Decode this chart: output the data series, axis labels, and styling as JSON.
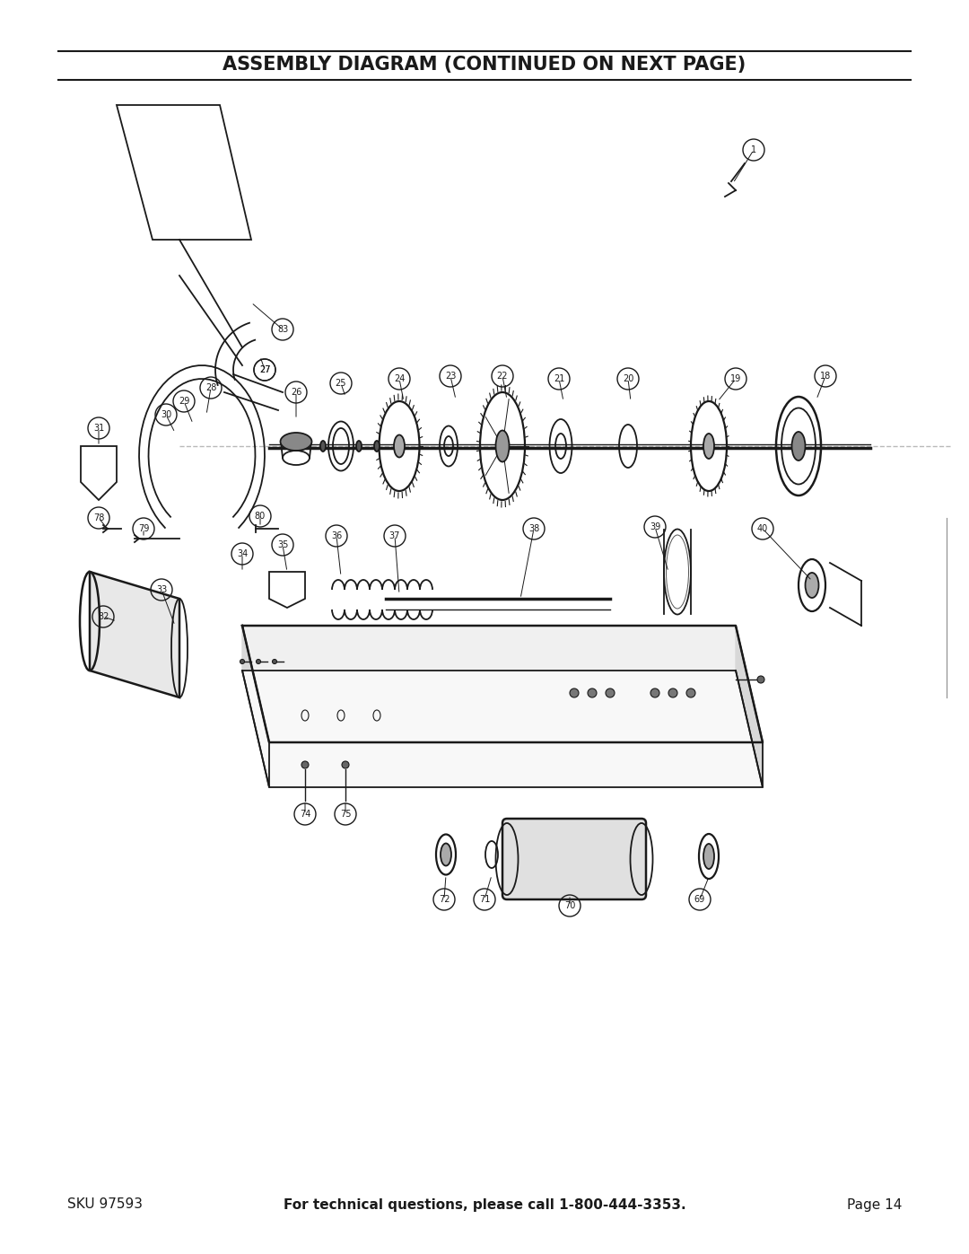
{
  "title": "ASSEMBLY DIAGRAM (CONTINUED ON NEXT PAGE)",
  "sku_text": "SKU 97593",
  "footer_middle": "For technical questions, please call 1-800-444-3353.",
  "footer_right": "Page 14",
  "bg_color": "#ffffff",
  "text_color": "#1a1a1a",
  "title_fontsize": 15,
  "footer_fontsize": 11,
  "page_width": 10.8,
  "page_height": 13.97
}
